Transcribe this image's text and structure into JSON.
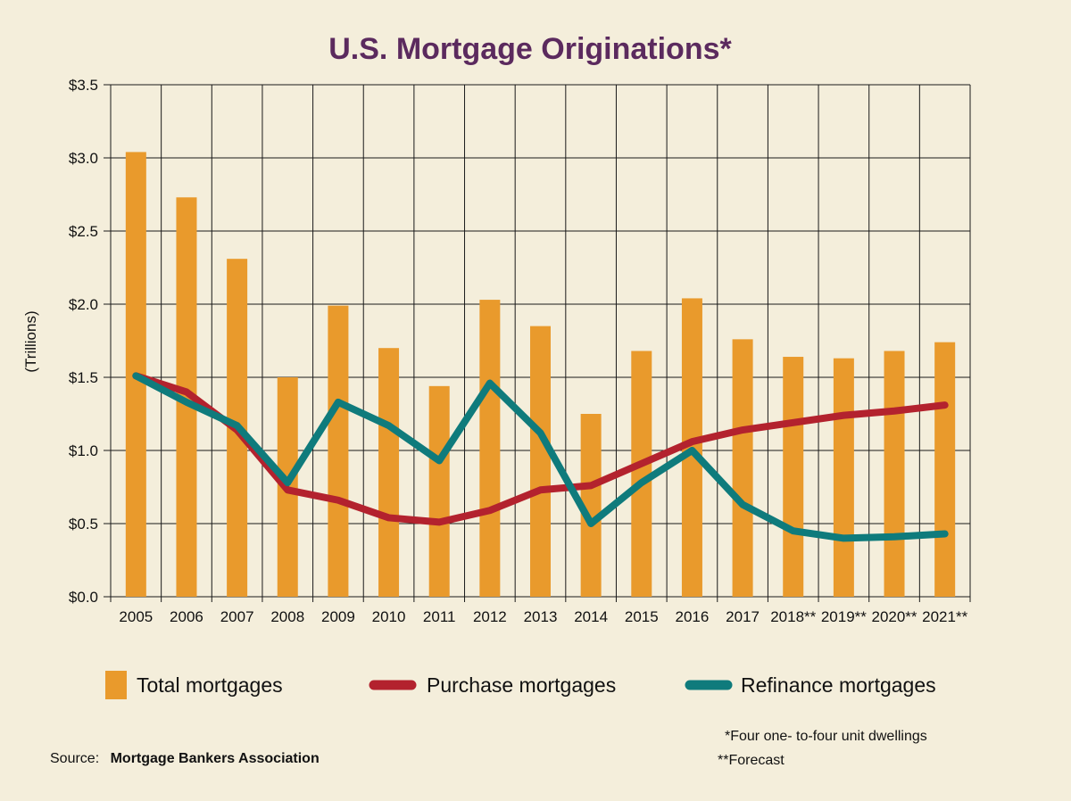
{
  "chart_data": {
    "type": "bar",
    "title": "U.S. Mortgage Originations*",
    "ylabel": "(Trillions)",
    "xlabel": "",
    "ylim": [
      0,
      3.5
    ],
    "yticks": [
      0.0,
      0.5,
      1.0,
      1.5,
      2.0,
      2.5,
      3.0,
      3.5
    ],
    "ytick_labels": [
      "$0.0",
      "$0.5",
      "$1.0",
      "$1.5",
      "$2.0",
      "$2.5",
      "$3.0",
      "$3.5"
    ],
    "grid": true,
    "categories": [
      "2005",
      "2006",
      "2007",
      "2008",
      "2009",
      "2010",
      "2011",
      "2012",
      "2013",
      "2014",
      "2015",
      "2016",
      "2017",
      "2018**",
      "2019**",
      "2020**",
      "2021**"
    ],
    "bars": {
      "name": "Total mortgages",
      "color": "#e99a2c",
      "values": [
        3.04,
        2.73,
        2.31,
        1.5,
        1.99,
        1.7,
        1.44,
        2.03,
        1.85,
        1.25,
        1.68,
        2.04,
        1.76,
        1.64,
        1.63,
        1.68,
        1.74
      ]
    },
    "series": [
      {
        "name": "Purchase mortgages",
        "type": "line",
        "color": "#b3222e",
        "values": [
          1.51,
          1.4,
          1.14,
          0.73,
          0.66,
          0.54,
          0.51,
          0.59,
          0.73,
          0.76,
          0.91,
          1.06,
          1.14,
          1.19,
          1.24,
          1.27,
          1.31
        ]
      },
      {
        "name": "Refinance mortgages",
        "type": "line",
        "color": "#0f7b7c",
        "values": [
          1.51,
          1.33,
          1.17,
          0.78,
          1.33,
          1.17,
          0.93,
          1.46,
          1.12,
          0.5,
          0.78,
          1.0,
          0.63,
          0.45,
          0.4,
          0.41,
          0.43
        ]
      }
    ],
    "legend_placement": "bottom"
  },
  "colors": {
    "background": "#f4eedb",
    "title": "#5b2a5e",
    "grid": "#1a1a1a"
  },
  "footer": {
    "source_label": "Source:",
    "source_name": "Mortgage Bankers Association",
    "note1": "*Four one- to-four unit dwellings",
    "note2": "**Forecast"
  }
}
